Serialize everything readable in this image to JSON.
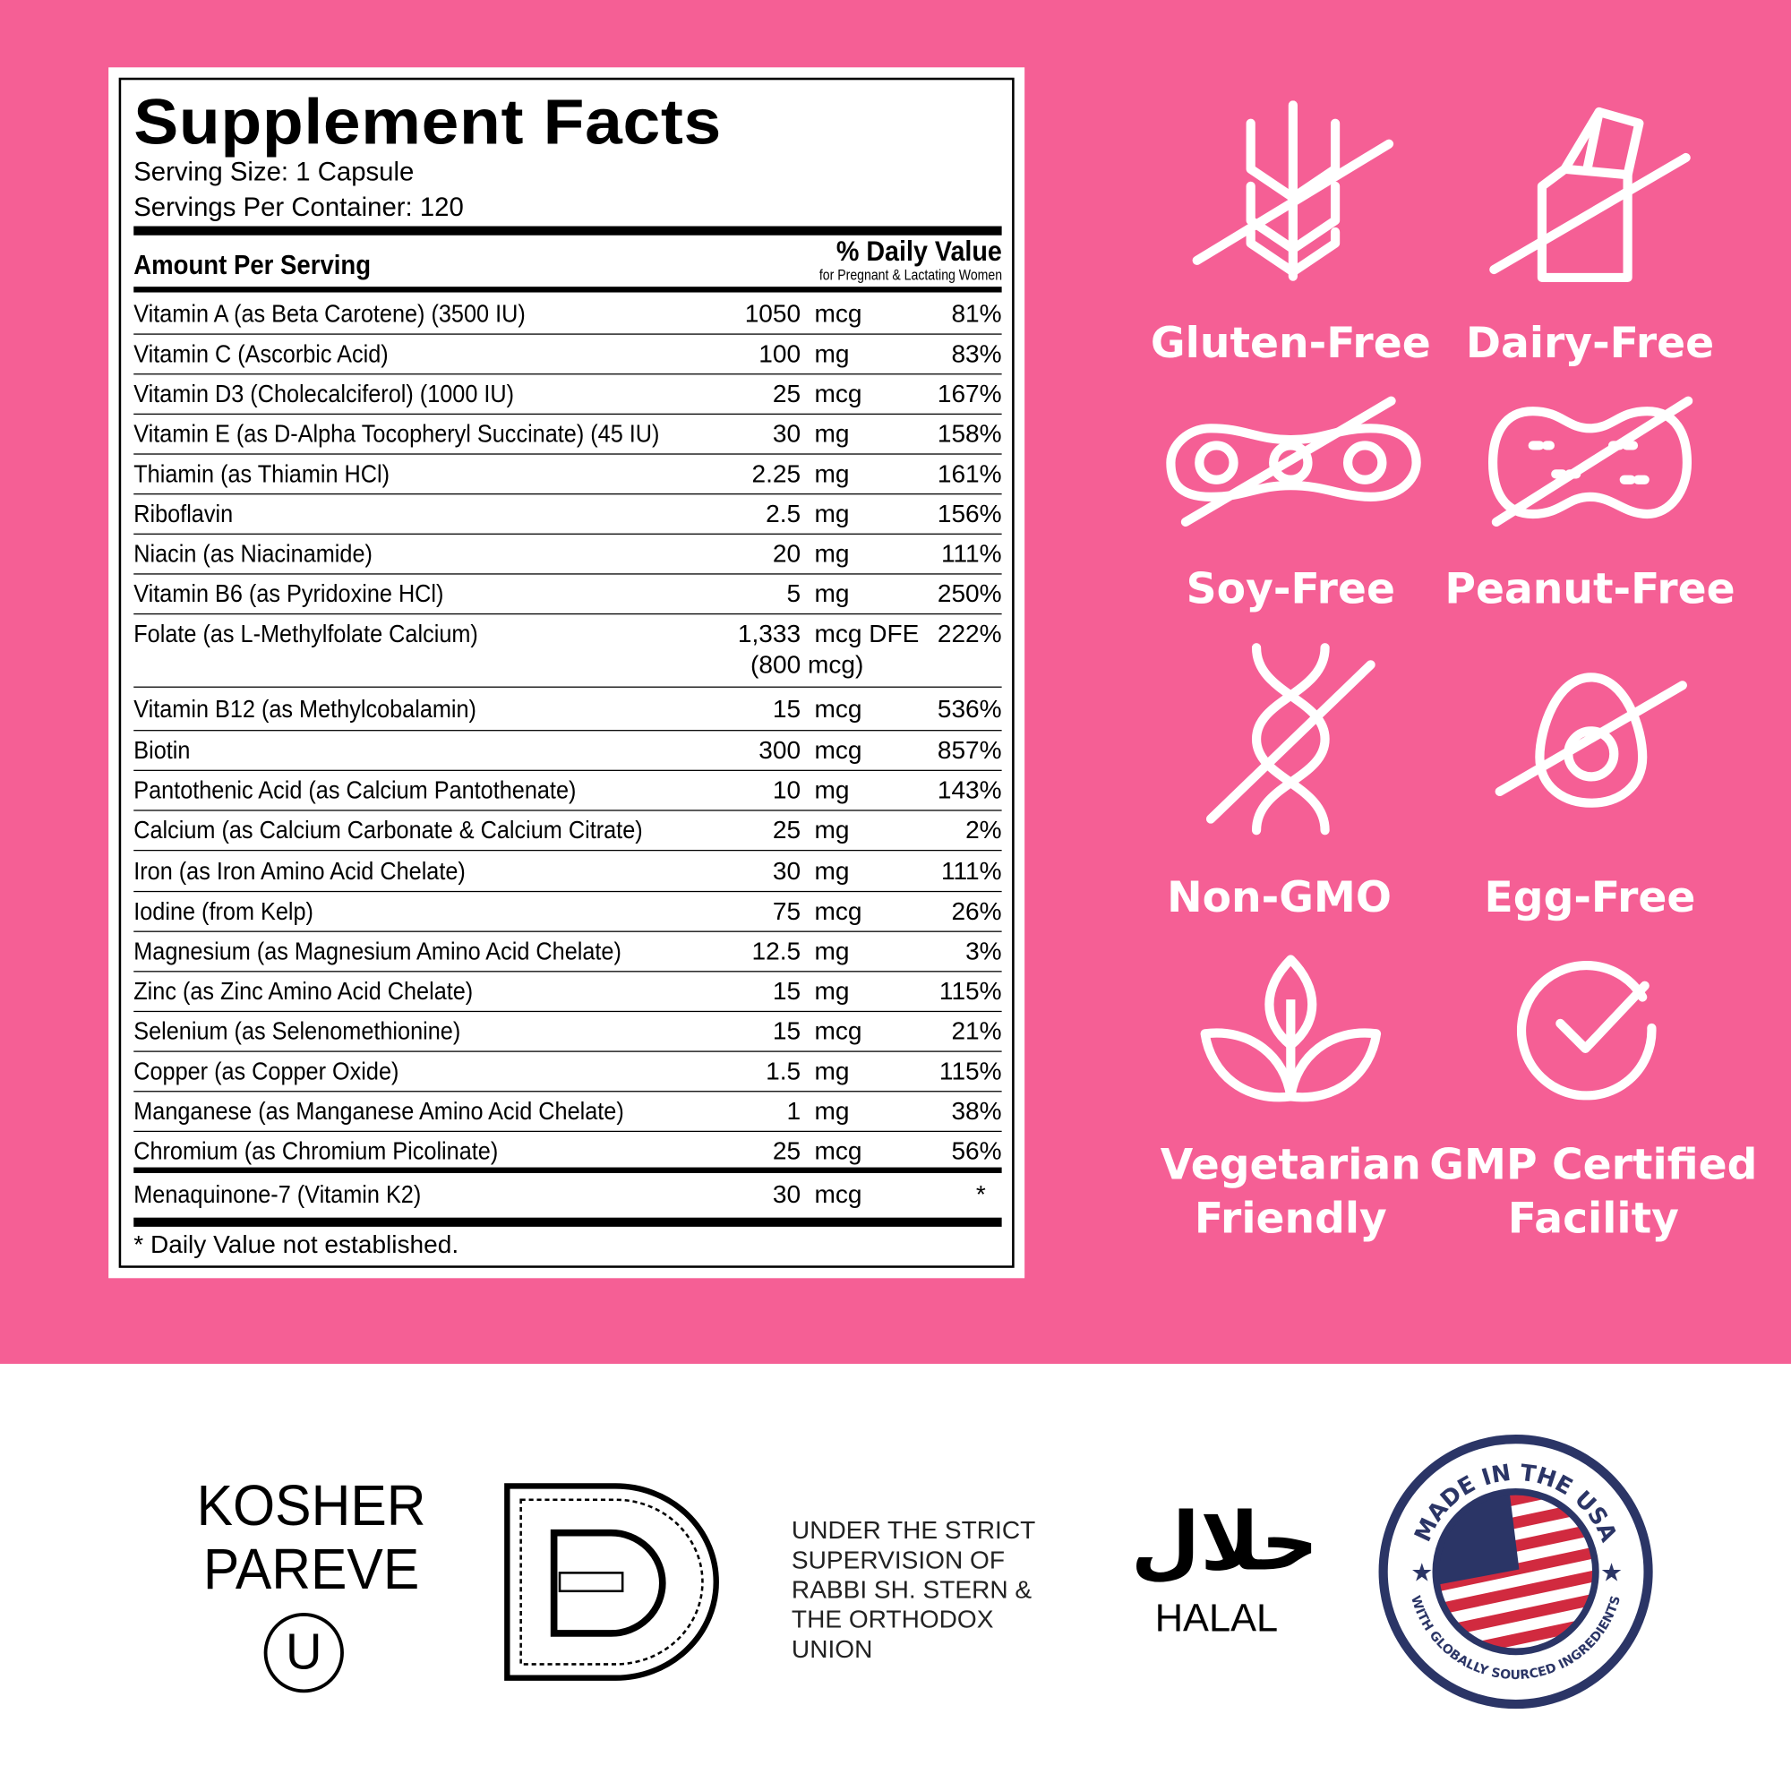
{
  "facts": {
    "title": "Supplement Facts",
    "serving_size": "Serving Size: 1 Capsule",
    "servings_per_container": "Servings Per Container: 120",
    "amount_header": "Amount Per Serving",
    "dv_header": "% Daily Value",
    "dv_sub": "for Pregnant & Lactating Women",
    "rows": [
      {
        "name": "Vitamin A (as Beta Carotene) (3500 IU)",
        "amount": "1050",
        "unit": "mcg",
        "dv": "81%"
      },
      {
        "name": "Vitamin C (Ascorbic Acid)",
        "amount": "100",
        "unit": "mg",
        "dv": "83%"
      },
      {
        "name": "Vitamin D3 (Cholecalciferol) (1000 IU)",
        "amount": "25",
        "unit": "mcg",
        "dv": "167%"
      },
      {
        "name": "Vitamin E (as D-Alpha Tocopheryl Succinate) (45 IU)",
        "amount": "30",
        "unit": "mg",
        "dv": "158%"
      },
      {
        "name": "Thiamin (as Thiamin HCl)",
        "amount": "2.25",
        "unit": "mg",
        "dv": "161%"
      },
      {
        "name": "Riboflavin",
        "amount": "2.5",
        "unit": "mg",
        "dv": "156%"
      },
      {
        "name": "Niacin (as Niacinamide)",
        "amount": "20",
        "unit": "mg",
        "dv": "111%"
      },
      {
        "name": "Vitamin B6 (as Pyridoxine HCl)",
        "amount": "5",
        "unit": "mg",
        "dv": "250%"
      },
      {
        "name": "Folate (as L-Methylfolate Calcium)",
        "amount": "1,333",
        "unit": "mcg DFE",
        "unit2": "(800 mcg)",
        "dv": "222%"
      },
      {
        "name": "Vitamin B12 (as Methylcobalamin)",
        "amount": "15",
        "unit": "mcg",
        "dv": "536%"
      },
      {
        "name": "Biotin",
        "amount": "300",
        "unit": "mcg",
        "dv": "857%"
      },
      {
        "name": "Pantothenic Acid (as Calcium Pantothenate)",
        "amount": "10",
        "unit": "mg",
        "dv": "143%"
      },
      {
        "name": "Calcium (as Calcium Carbonate & Calcium Citrate)",
        "amount": "25",
        "unit": "mg",
        "dv": "2%"
      },
      {
        "name": "Iron (as Iron Amino Acid Chelate)",
        "amount": "30",
        "unit": "mg",
        "dv": "111%"
      },
      {
        "name": "Iodine (from Kelp)",
        "amount": "75",
        "unit": "mcg",
        "dv": "26%"
      },
      {
        "name": "Magnesium (as Magnesium Amino Acid Chelate)",
        "amount": "12.5",
        "unit": "mg",
        "dv": "3%"
      },
      {
        "name": "Zinc (as Zinc Amino Acid Chelate)",
        "amount": "15",
        "unit": "mg",
        "dv": "115%"
      },
      {
        "name": "Selenium (as Selenomethionine)",
        "amount": "15",
        "unit": "mcg",
        "dv": "21%"
      },
      {
        "name": "Copper (as Copper Oxide)",
        "amount": "1.5",
        "unit": "mg",
        "dv": "115%"
      },
      {
        "name": "Manganese (as Manganese Amino Acid Chelate)",
        "amount": "1",
        "unit": "mg",
        "dv": "38%"
      },
      {
        "name": "Chromium (as Chromium Picolinate)",
        "amount": "25",
        "unit": "mcg",
        "dv": "56%"
      }
    ],
    "extra_row": {
      "name": "Menaquinone-7 (Vitamin K2)",
      "amount": "30",
      "unit": "mcg",
      "dv": "*"
    },
    "footnote": "* Daily Value not established."
  },
  "badges": [
    {
      "label": "Gluten-Free",
      "icon": "wheat-crossed-icon"
    },
    {
      "label": "Dairy-Free",
      "icon": "milk-carton-crossed-icon"
    },
    {
      "label": "Soy-Free",
      "icon": "soybean-crossed-icon"
    },
    {
      "label": "Peanut-Free",
      "icon": "peanut-crossed-icon"
    },
    {
      "label": "Non-GMO",
      "icon": "dna-crossed-icon"
    },
    {
      "label": "Egg-Free",
      "icon": "egg-crossed-icon"
    },
    {
      "label": "Vegetarian\nFriendly",
      "icon": "leaf-icon"
    },
    {
      "label": "GMP Certified\nFacility",
      "icon": "check-circle-icon"
    }
  ],
  "certifications": {
    "kosher_line1": "KOSHER",
    "kosher_line2": "PAREVE",
    "kosher_symbol": "U",
    "supervision": "UNDER THE STRICT\nSUPERVISION OF\nRABBI SH. STERN &\nTHE ORTHODOX\nUNION",
    "halal_arabic": "حلال",
    "halal": "HALAL",
    "usa_top": "MADE IN THE USA",
    "usa_bottom": "WITH GLOBALLY SOURCED INGREDIENTS"
  },
  "colors": {
    "background_pink": "#F55F95",
    "seal_navy": "#2B3566",
    "flag_red": "#D12A3F"
  }
}
